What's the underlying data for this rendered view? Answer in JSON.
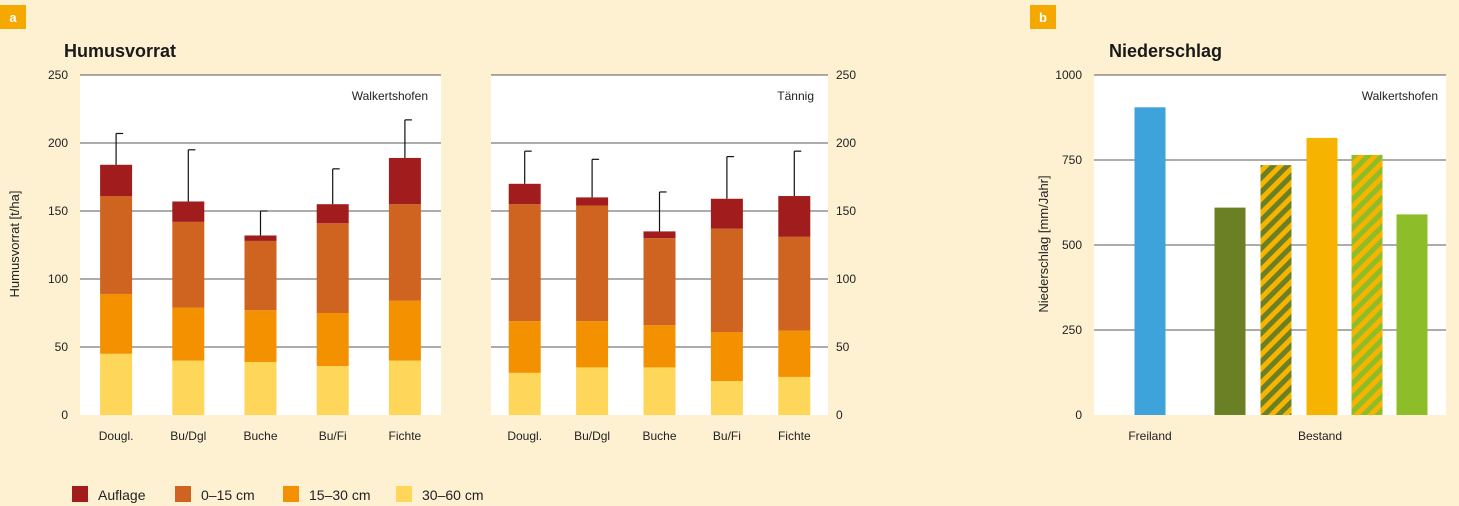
{
  "panel_a": {
    "badge": "a",
    "title": "Humusvorrat",
    "ylabel": "Humusvorrat [t/ha]"
  },
  "panel_b": {
    "badge": "b",
    "title": "Niederschlag",
    "ylabel": "Niederschlag [mm/Jahr]"
  },
  "legend": [
    {
      "label": "Auflage",
      "color": "#a11d1d"
    },
    {
      "label": "0–15 cm",
      "color": "#cf6320"
    },
    {
      "label": "15–30 cm",
      "color": "#f49100"
    },
    {
      "label": "30–60 cm",
      "color": "#fdd65a"
    }
  ],
  "chart_data": [
    {
      "type": "bar",
      "stacked": true,
      "site": "Walkertshofen",
      "categories": [
        "Dougl.",
        "Bu/Dgl",
        "Buche",
        "Bu/Fi",
        "Fichte"
      ],
      "ylim": [
        0,
        250
      ],
      "yticks": [
        0,
        50,
        100,
        150,
        200,
        250
      ],
      "series": [
        {
          "name": "30–60 cm",
          "color": "#fdd65a",
          "values": [
            45,
            40,
            39,
            36,
            40
          ]
        },
        {
          "name": "15–30 cm",
          "color": "#f49100",
          "values": [
            44,
            39,
            38,
            39,
            44
          ]
        },
        {
          "name": "0–15 cm",
          "color": "#cf6320",
          "values": [
            72,
            63,
            51,
            66,
            71
          ]
        },
        {
          "name": "Auflage",
          "color": "#a11d1d",
          "values": [
            23,
            15,
            4,
            14,
            34
          ]
        }
      ],
      "error_top": [
        207,
        195,
        150,
        181,
        217
      ]
    },
    {
      "type": "bar",
      "stacked": true,
      "site": "Tännig",
      "categories": [
        "Dougl.",
        "Bu/Dgl",
        "Buche",
        "Bu/Fi",
        "Fichte"
      ],
      "ylim": [
        0,
        250
      ],
      "yticks": [
        0,
        50,
        100,
        150,
        200,
        250
      ],
      "series": [
        {
          "name": "30–60 cm",
          "color": "#fdd65a",
          "values": [
            31,
            35,
            35,
            25,
            28
          ]
        },
        {
          "name": "15–30 cm",
          "color": "#f49100",
          "values": [
            38,
            34,
            31,
            36,
            34
          ]
        },
        {
          "name": "0–15 cm",
          "color": "#cf6320",
          "values": [
            86,
            85,
            64,
            76,
            69
          ]
        },
        {
          "name": "Auflage",
          "color": "#a11d1d",
          "values": [
            15,
            6,
            5,
            22,
            30
          ]
        }
      ],
      "error_top": [
        194,
        188,
        164,
        190,
        194
      ]
    },
    {
      "type": "bar",
      "site": "Walkertshofen",
      "group_labels": [
        "Freiland",
        "Bestand"
      ],
      "ylim": [
        0,
        1000
      ],
      "yticks": [
        0,
        250,
        500,
        750,
        1000
      ],
      "bars": [
        {
          "group": "Freiland",
          "value": 905,
          "color": "#3fa3db",
          "pattern": "solid"
        },
        {
          "group": "Bestand",
          "value": 610,
          "color": "#6b7f24",
          "pattern": "solid"
        },
        {
          "group": "Bestand",
          "value": 735,
          "color": "#6b7f24",
          "color2": "#f6b300",
          "pattern": "hatch"
        },
        {
          "group": "Bestand",
          "value": 815,
          "color": "#f6b300",
          "pattern": "solid"
        },
        {
          "group": "Bestand",
          "value": 765,
          "color": "#f6b300",
          "color2": "#8ebd2a",
          "pattern": "hatch"
        },
        {
          "group": "Bestand",
          "value": 590,
          "color": "#8ebd2a",
          "pattern": "solid"
        }
      ]
    }
  ]
}
